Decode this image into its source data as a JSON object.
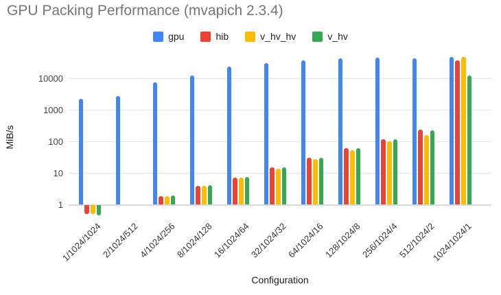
{
  "title": "GPU Packing Performance (mvapich 2.3.4)",
  "chart_data": {
    "type": "bar",
    "title": "GPU Packing Performance (mvapich 2.3.4)",
    "xlabel": "Configuration",
    "ylabel": "MiB/s",
    "y_scale": "log",
    "y_ticks": [
      1,
      10,
      100,
      1000,
      10000
    ],
    "ylim": [
      0.4,
      60000
    ],
    "grid": true,
    "legend_position": "top",
    "categories": [
      "1/1024/1024",
      "2/1024/512",
      "4/1024/256",
      "8/1024/128",
      "16/1024/64",
      "32/1024/32",
      "64/1024/16",
      "128/1024/8",
      "256/1024/4",
      "512/1024/2",
      "1024/1024/1"
    ],
    "series": [
      {
        "name": "gpu",
        "color": "#4285F4",
        "values": [
          2200,
          2700,
          7500,
          12000,
          23000,
          30000,
          37000,
          42000,
          45000,
          42000,
          48000
        ]
      },
      {
        "name": "hib",
        "color": "#EA4335",
        "values": [
          0.5,
          null,
          1.8,
          3.8,
          7.2,
          15,
          30,
          60,
          118,
          235,
          36000
        ]
      },
      {
        "name": "v_hv_hv",
        "color": "#FBBC04",
        "values": [
          0.5,
          null,
          1.8,
          3.8,
          7.0,
          13.5,
          27,
          52,
          98,
          160,
          48000
        ]
      },
      {
        "name": "v_hv",
        "color": "#34A853",
        "values": [
          0.45,
          null,
          1.9,
          4.0,
          7.5,
          15,
          30,
          60,
          118,
          220,
          12000
        ]
      }
    ]
  },
  "colors": {
    "title_text": "#757575",
    "axis_text": "#444444",
    "gridline": "#e6e6e6",
    "baseline": "#dadada",
    "background": "#ffffff"
  }
}
